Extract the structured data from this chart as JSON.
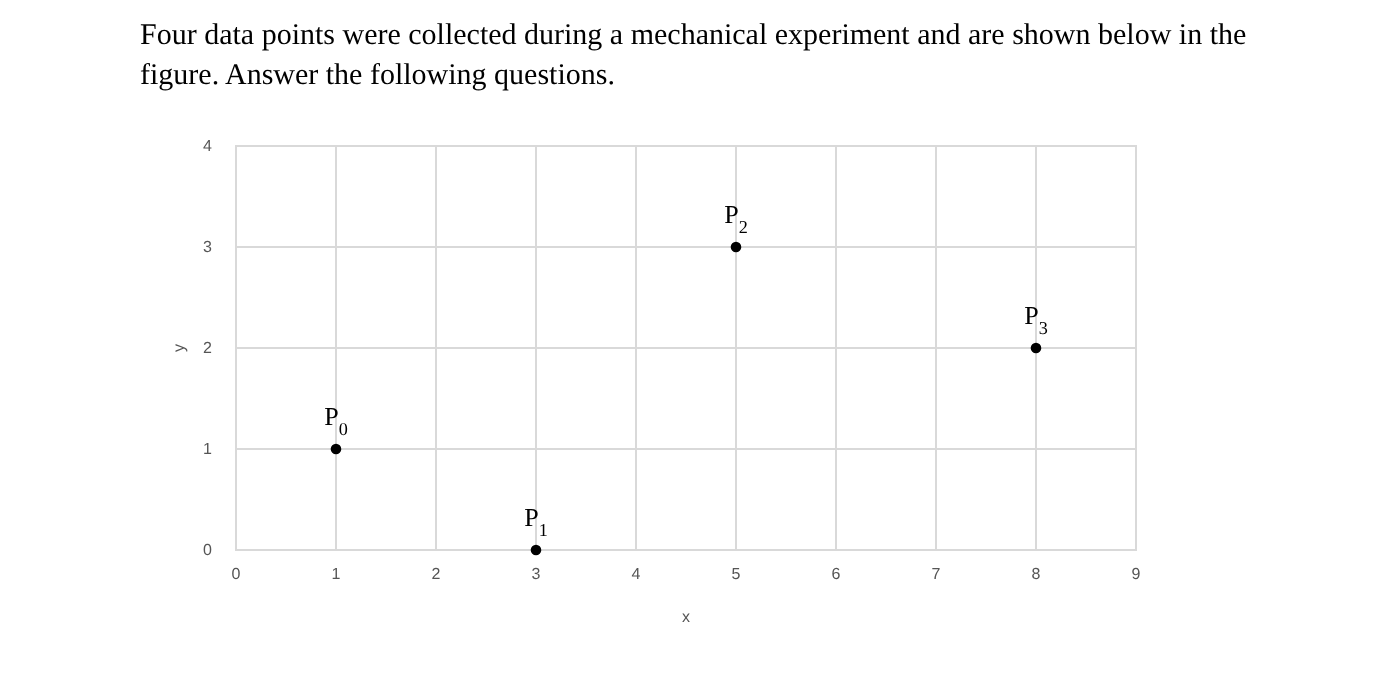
{
  "chart_data": {
    "type": "scatter",
    "title": "Four data points were collected during a mechanical experiment and are shown below in the figure.  Answer the following questions.",
    "xlabel": "x",
    "ylabel": "y",
    "x": [
      1,
      3,
      5,
      8
    ],
    "values": [
      1,
      0,
      3,
      2
    ],
    "color": "#000000",
    "marker": "circle",
    "xlim": [
      0,
      9
    ],
    "xticks": [
      0,
      1,
      2,
      3,
      4,
      5,
      6,
      7,
      8,
      9
    ],
    "ylim": [
      0,
      4
    ],
    "yticks": [
      0,
      1,
      2,
      3,
      4
    ],
    "grid": true,
    "annotations": [
      {
        "text": "P$_{0}$",
        "x": 1,
        "y": 1
      },
      {
        "text": "P$_{1}$",
        "x": 3,
        "y": 0
      },
      {
        "text": "P$_{2}$",
        "x": 5,
        "y": 3
      },
      {
        "text": "P$_{3}$",
        "x": 8,
        "y": 2
      }
    ]
  }
}
